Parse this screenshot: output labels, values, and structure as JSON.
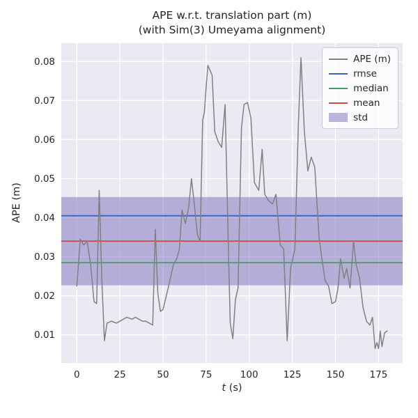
{
  "title": {
    "line1": "APE w.r.t. translation part (m)",
    "line2": "(with Sim(3) Umeyama alignment)"
  },
  "axes": {
    "xlabel_var": "t",
    "xlabel_unit": " (s)",
    "ylabel": "APE (m)",
    "xlim": [
      -9,
      189
    ],
    "ylim": [
      0.0028,
      0.0847
    ],
    "xticks": [
      0,
      25,
      50,
      75,
      100,
      125,
      150,
      175
    ],
    "yticks": [
      0.01,
      0.02,
      0.03,
      0.04,
      0.05,
      0.06,
      0.07,
      0.08
    ],
    "grid": true
  },
  "legend": {
    "position": "upper-right",
    "entries": [
      {
        "label": "APE (m)",
        "type": "line",
        "color": "#808080"
      },
      {
        "label": "rmse",
        "type": "line",
        "color": "#3563c0"
      },
      {
        "label": "median",
        "type": "line",
        "color": "#45a05f"
      },
      {
        "label": "mean",
        "type": "line",
        "color": "#c94c4c"
      },
      {
        "label": "std",
        "type": "patch",
        "color": "#7b6fbd80"
      }
    ]
  },
  "colors": {
    "plot_bg": "#eaeaf2",
    "grid": "#ffffff",
    "ape": "#808080",
    "rmse": "#3563c0",
    "median": "#45a05f",
    "mean": "#c94c4c",
    "std_fill": "#7b6fbd80",
    "text": "#262626"
  },
  "chart_data": {
    "type": "line",
    "title": "APE w.r.t. translation part (m) (with Sim(3) Umeyama alignment)",
    "xlabel": "t (s)",
    "ylabel": "APE (m)",
    "xlim": [
      -9,
      189
    ],
    "ylim": [
      0.0028,
      0.0847
    ],
    "legend_position": "upper right",
    "grid": true,
    "series": [
      {
        "name": "APE (m)",
        "x": [
          0,
          2,
          4,
          6,
          8,
          10,
          11.5,
          13,
          14.5,
          16,
          17.5,
          20,
          23,
          25,
          27,
          29,
          32,
          34,
          36,
          38,
          40,
          42,
          44,
          45.5,
          47,
          48.5,
          50,
          53,
          56,
          58,
          59.5,
          61,
          63,
          65,
          66.5,
          68,
          70,
          71.5,
          73,
          74,
          75,
          76,
          77.5,
          78.5,
          80,
          82,
          84,
          86,
          88,
          89,
          90.5,
          92,
          93.5,
          95.5,
          97,
          99,
          101,
          103,
          105.5,
          107.5,
          109,
          111,
          113.5,
          115.5,
          118,
          120,
          122,
          124,
          126.5,
          128.5,
          130,
          132,
          134,
          136,
          138,
          140.5,
          142,
          144,
          146,
          148,
          150,
          151.5,
          153,
          155,
          156.5,
          158.5,
          160.5,
          162,
          164,
          166,
          168,
          170,
          171.5,
          173,
          174,
          175,
          176,
          177,
          178.5,
          180
        ],
        "y": [
          0.0225,
          0.0345,
          0.033,
          0.034,
          0.028,
          0.0185,
          0.018,
          0.047,
          0.024,
          0.0085,
          0.013,
          0.0135,
          0.013,
          0.0135,
          0.014,
          0.0145,
          0.014,
          0.0145,
          0.014,
          0.0135,
          0.0135,
          0.013,
          0.0125,
          0.037,
          0.0205,
          0.016,
          0.0165,
          0.022,
          0.028,
          0.0295,
          0.032,
          0.042,
          0.0385,
          0.043,
          0.05,
          0.044,
          0.0355,
          0.034,
          0.065,
          0.067,
          0.0735,
          0.079,
          0.0775,
          0.0765,
          0.062,
          0.0595,
          0.058,
          0.069,
          0.03,
          0.013,
          0.009,
          0.019,
          0.022,
          0.063,
          0.069,
          0.0695,
          0.0655,
          0.049,
          0.047,
          0.0575,
          0.046,
          0.0445,
          0.0435,
          0.046,
          0.033,
          0.032,
          0.0085,
          0.027,
          0.032,
          0.064,
          0.081,
          0.062,
          0.052,
          0.0555,
          0.053,
          0.035,
          0.03,
          0.024,
          0.0225,
          0.018,
          0.0185,
          0.022,
          0.0295,
          0.0245,
          0.027,
          0.022,
          0.034,
          0.028,
          0.0245,
          0.017,
          0.0135,
          0.0125,
          0.0145,
          0.0065,
          0.008,
          0.0065,
          0.011,
          0.007,
          0.0105,
          0.011
        ]
      }
    ],
    "stats": {
      "rmse": 0.0405,
      "mean": 0.034,
      "median": 0.0285,
      "std": 0.0113,
      "std_band": [
        0.0227,
        0.0453
      ]
    }
  }
}
